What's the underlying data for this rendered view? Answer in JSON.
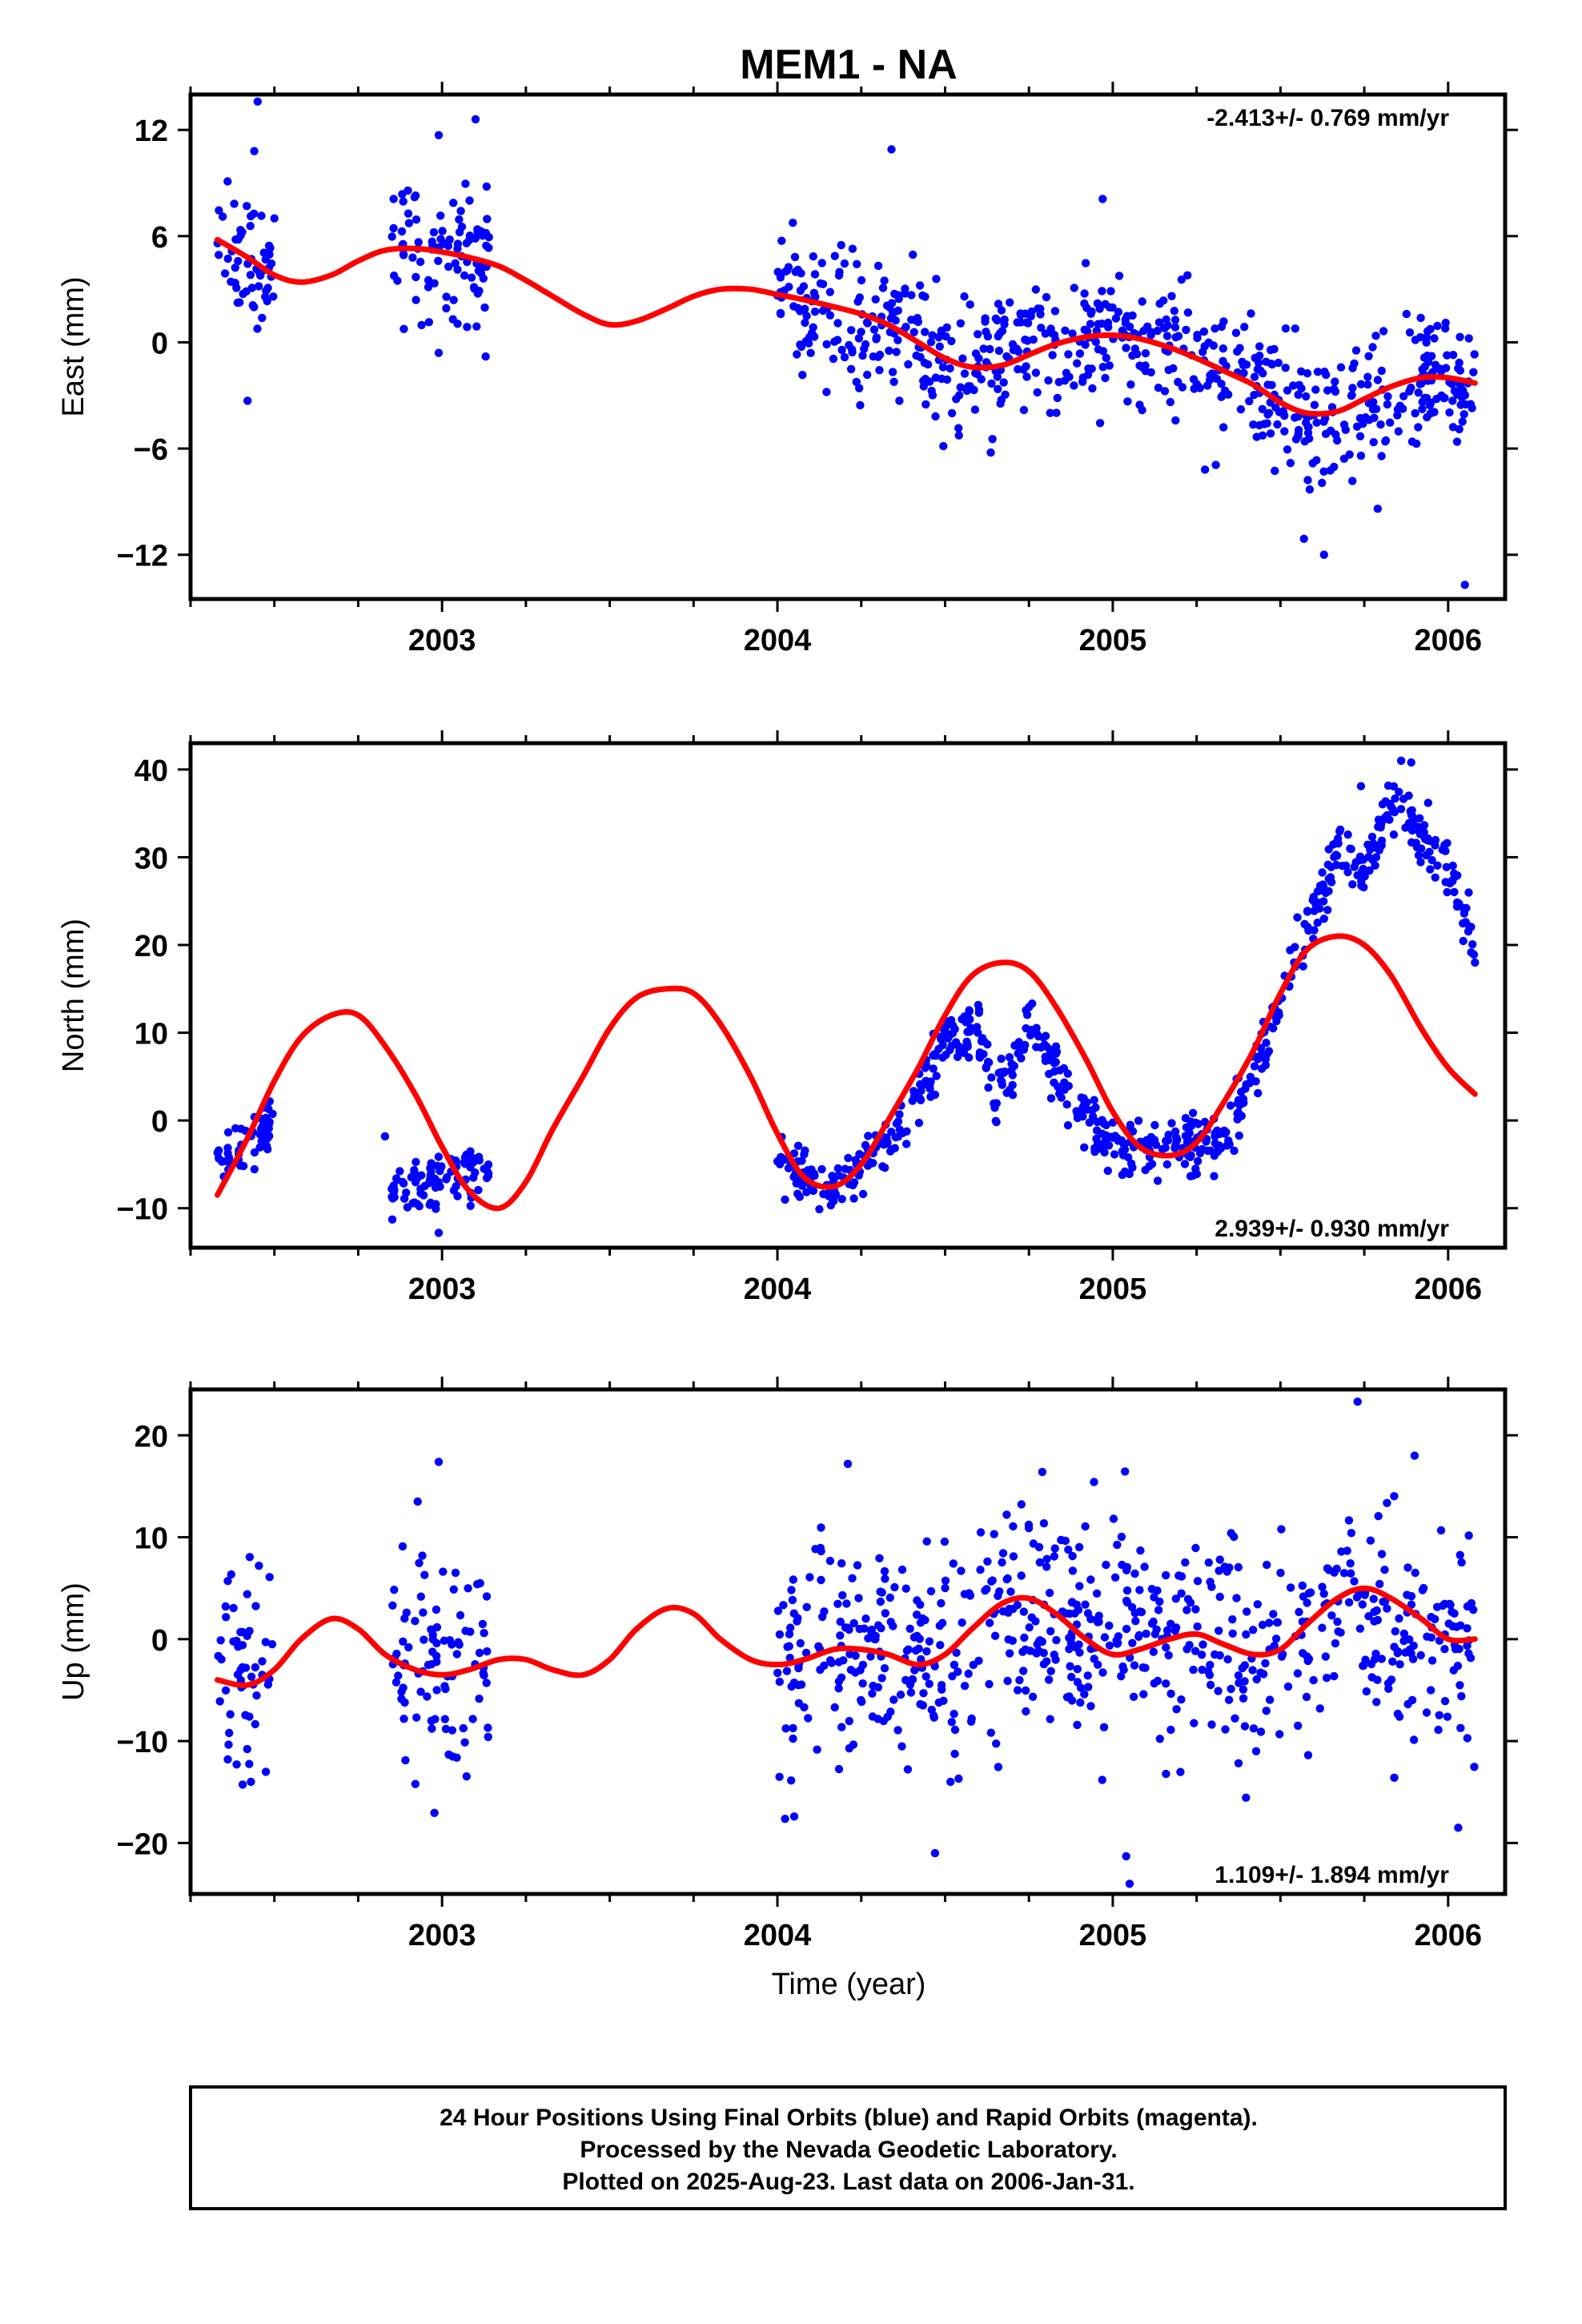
{
  "figure": {
    "title": "MEM1 - NA",
    "xlabel": "Time (year)",
    "footer": [
      "24 Hour Positions Using Final Orbits (blue) and Rapid Orbits (magenta).",
      "Processed by the Nevada Geodetic Laboratory.",
      "Plotted on 2025-Aug-23. Last data on 2006-Jan-31."
    ],
    "colors": {
      "points": "#0000ff",
      "model": "#ff0000",
      "frame": "#000000"
    }
  },
  "chart_data": [
    {
      "type": "scatter",
      "ylabel": "East (mm)",
      "rate": "-2.413+/- 0.769 mm/yr",
      "xlim": [
        2002.25,
        2006.17
      ],
      "ylim": [
        -14.5,
        14
      ],
      "yticks": [
        12,
        6,
        0,
        -6,
        -12
      ],
      "ytick_labels": [
        "12",
        "6",
        "0",
        "−6",
        "−12"
      ],
      "xticks": [
        2003,
        2004,
        2005,
        2006
      ],
      "xtick_labels": [
        "2003",
        "2004",
        "2005",
        "2006"
      ],
      "data_segments": [
        [
          2002.33,
          2002.5
        ],
        [
          2002.85,
          2003.14
        ],
        [
          2004.0,
          2006.08
        ]
      ],
      "model": {
        "name": "model fit",
        "x": [
          2002.33,
          2002.42,
          2002.5,
          2002.58,
          2002.67,
          2002.75,
          2002.83,
          2002.92,
          2003.0,
          2003.08,
          2003.17,
          2003.25,
          2003.33,
          2003.42,
          2003.5,
          2003.58,
          2003.67,
          2003.75,
          2003.83,
          2003.92,
          2004.0,
          2004.08,
          2004.17,
          2004.25,
          2004.33,
          2004.42,
          2004.5,
          2004.58,
          2004.67,
          2004.75,
          2004.83,
          2004.92,
          2005.0,
          2005.08,
          2005.17,
          2005.25,
          2005.33,
          2005.42,
          2005.5,
          2005.58,
          2005.67,
          2005.75,
          2005.83,
          2005.92,
          2006.0,
          2006.08
        ],
        "y": [
          5.8,
          4.8,
          3.8,
          3.4,
          3.8,
          4.6,
          5.2,
          5.3,
          5.1,
          4.8,
          4.3,
          3.5,
          2.6,
          1.6,
          1.0,
          1.2,
          1.9,
          2.6,
          3.0,
          3.0,
          2.7,
          2.4,
          2.0,
          1.6,
          1.0,
          0.0,
          -0.9,
          -1.4,
          -1.3,
          -0.7,
          -0.1,
          0.3,
          0.4,
          0.2,
          -0.3,
          -0.9,
          -1.6,
          -2.4,
          -3.4,
          -4.0,
          -3.9,
          -3.2,
          -2.5,
          -2.0,
          -2.0,
          -2.3
        ]
      },
      "scatter": {
        "name": "daily positions",
        "trend_amp": 2.0,
        "noise_sd": 1.9,
        "notable_points": [
          [
            2002.45,
            13.6
          ],
          [
            2002.44,
            10.8
          ],
          [
            2002.42,
            -3.3
          ],
          [
            2002.5,
            7.0
          ],
          [
            2002.99,
            11.7
          ],
          [
            2003.1,
            12.6
          ],
          [
            2002.99,
            -0.6
          ],
          [
            2003.13,
            -0.8
          ],
          [
            2004.34,
            10.9
          ],
          [
            2004.97,
            8.1
          ],
          [
            2005.57,
            -11.1
          ],
          [
            2005.63,
            -12.0
          ],
          [
            2006.05,
            -13.7
          ],
          [
            2005.79,
            -9.4
          ]
        ]
      }
    },
    {
      "type": "scatter",
      "ylabel": "North (mm)",
      "rate": "2.939+/- 0.930 mm/yr",
      "xlim": [
        2002.25,
        2006.17
      ],
      "ylim": [
        -14.5,
        43
      ],
      "yticks": [
        40,
        30,
        20,
        10,
        0,
        -10
      ],
      "ytick_labels": [
        "40",
        "30",
        "20",
        "10",
        "0",
        "−10"
      ],
      "xticks": [
        2003,
        2004,
        2005,
        2006
      ],
      "xtick_labels": [
        "2003",
        "2004",
        "2005",
        "2006"
      ],
      "data_segments": [
        [
          2002.33,
          2002.5
        ],
        [
          2002.85,
          2003.14
        ],
        [
          2004.0,
          2006.08
        ]
      ],
      "model": {
        "name": "model fit",
        "x": [
          2002.33,
          2002.42,
          2002.5,
          2002.58,
          2002.67,
          2002.75,
          2002.83,
          2002.92,
          2003.0,
          2003.08,
          2003.17,
          2003.25,
          2003.33,
          2003.42,
          2003.5,
          2003.58,
          2003.67,
          2003.75,
          2003.83,
          2003.92,
          2004.0,
          2004.08,
          2004.17,
          2004.25,
          2004.33,
          2004.42,
          2004.5,
          2004.58,
          2004.67,
          2004.75,
          2004.83,
          2004.92,
          2005.0,
          2005.08,
          2005.17,
          2005.25,
          2005.33,
          2005.42,
          2005.5,
          2005.58,
          2005.67,
          2005.75,
          2005.83,
          2005.92,
          2006.0,
          2006.08
        ],
        "y": [
          -8.5,
          -2.0,
          4.5,
          9.5,
          12.0,
          12.0,
          8.5,
          3.0,
          -3.0,
          -8.0,
          -10.0,
          -7.0,
          -1.0,
          5.0,
          10.5,
          14.0,
          15.0,
          14.5,
          11.0,
          5.0,
          -1.5,
          -6.5,
          -7.5,
          -5.0,
          0.0,
          6.0,
          12.0,
          16.5,
          18.0,
          17.0,
          13.0,
          7.0,
          1.0,
          -3.0,
          -4.0,
          -2.5,
          2.0,
          8.0,
          14.5,
          19.5,
          21.0,
          20.0,
          16.5,
          10.5,
          6.0,
          3.0
        ]
      },
      "scatter": {
        "name": "daily positions",
        "noise_sd": 1.6,
        "anchors": [
          [
            2002.33,
            -5.5
          ],
          [
            2002.5,
            0.0
          ],
          [
            2002.85,
            -8.0
          ],
          [
            2003.14,
            -5.0
          ],
          [
            2004.0,
            -4.5
          ],
          [
            2004.17,
            -7.5
          ],
          [
            2004.33,
            -2.5
          ],
          [
            2004.42,
            3.0
          ],
          [
            2004.5,
            9.0
          ],
          [
            2004.6,
            11.0
          ],
          [
            2004.65,
            2.0
          ],
          [
            2004.75,
            11.0
          ],
          [
            2004.83,
            5.0
          ],
          [
            2004.92,
            0.0
          ],
          [
            2005.0,
            -2.5
          ],
          [
            2005.17,
            -3.5
          ],
          [
            2005.33,
            -2.0
          ],
          [
            2005.42,
            5.0
          ],
          [
            2005.5,
            14.0
          ],
          [
            2005.58,
            22.0
          ],
          [
            2005.67,
            30.0
          ],
          [
            2005.75,
            29.0
          ],
          [
            2005.83,
            36.0
          ],
          [
            2005.92,
            33.0
          ],
          [
            2006.0,
            29.0
          ],
          [
            2006.08,
            20.0
          ]
        ],
        "notable_points": [
          [
            2002.83,
            -1.8
          ],
          [
            2002.85,
            -7.8
          ],
          [
            2002.99,
            -12.8
          ],
          [
            2005.74,
            38.1
          ],
          [
            2005.86,
            41.0
          ],
          [
            2005.89,
            40.8
          ],
          [
            2006.08,
            18.0
          ]
        ]
      }
    },
    {
      "type": "scatter",
      "ylabel": "Up (mm)",
      "rate": "1.109+/- 1.894 mm/yr",
      "xlim": [
        2002.25,
        2006.17
      ],
      "ylim": [
        -25,
        24.5
      ],
      "yticks": [
        20,
        10,
        0,
        -10,
        -20
      ],
      "ytick_labels": [
        "20",
        "10",
        "0",
        "−10",
        "−20"
      ],
      "xticks": [
        2003,
        2004,
        2005,
        2006
      ],
      "xtick_labels": [
        "2003",
        "2004",
        "2005",
        "2006"
      ],
      "data_segments": [
        [
          2002.33,
          2002.5
        ],
        [
          2002.85,
          2003.14
        ],
        [
          2004.0,
          2006.08
        ]
      ],
      "model": {
        "name": "model fit",
        "x": [
          2002.33,
          2002.42,
          2002.5,
          2002.58,
          2002.67,
          2002.75,
          2002.83,
          2002.92,
          2003.0,
          2003.08,
          2003.17,
          2003.25,
          2003.33,
          2003.42,
          2003.5,
          2003.58,
          2003.67,
          2003.75,
          2003.83,
          2003.92,
          2004.0,
          2004.08,
          2004.17,
          2004.25,
          2004.33,
          2004.42,
          2004.5,
          2004.58,
          2004.67,
          2004.75,
          2004.83,
          2004.92,
          2005.0,
          2005.08,
          2005.17,
          2005.25,
          2005.33,
          2005.42,
          2005.5,
          2005.58,
          2005.67,
          2005.75,
          2005.83,
          2005.92,
          2006.0,
          2006.08
        ],
        "y": [
          -4.0,
          -4.5,
          -3.0,
          0.0,
          2.0,
          1.0,
          -1.5,
          -3.0,
          -3.5,
          -3.0,
          -2.0,
          -2.0,
          -3.0,
          -3.5,
          -2.0,
          1.0,
          3.0,
          2.5,
          0.0,
          -2.0,
          -2.5,
          -2.0,
          -1.0,
          -1.0,
          -1.5,
          -2.5,
          -1.5,
          1.0,
          3.5,
          4.0,
          2.5,
          0.0,
          -1.5,
          -1.0,
          0.0,
          0.5,
          -0.5,
          -1.5,
          -1.0,
          1.5,
          4.0,
          5.0,
          4.0,
          2.0,
          0.0,
          0.0
        ]
      },
      "scatter": {
        "name": "daily positions",
        "noise_sd": 5.5,
        "notable_points": [
          [
            2005.73,
            23.3
          ],
          [
            2005.04,
            -21.3
          ],
          [
            2005.05,
            -24.0
          ],
          [
            2006.03,
            -18.5
          ],
          [
            2002.43,
            -14.0
          ],
          [
            2004.21,
            17.2
          ],
          [
            2004.79,
            16.4
          ],
          [
            2005.9,
            18.0
          ],
          [
            2004.05,
            -17.4
          ],
          [
            2004.47,
            -21.0
          ],
          [
            2002.99,
            17.4
          ]
        ]
      }
    }
  ]
}
